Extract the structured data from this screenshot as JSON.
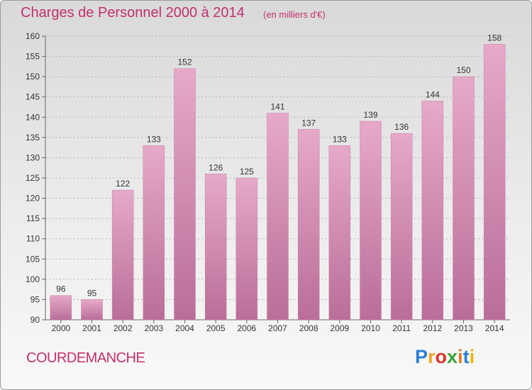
{
  "header": {
    "title": "Charges de Personnel 2000 à 2014",
    "subtitle": "(en milliers d'€)"
  },
  "footer": {
    "commune": "COURDEMANCHE",
    "brand_letters": [
      {
        "ch": "P",
        "color": "#2b7fd4"
      },
      {
        "ch": "r",
        "color": "#f2a11c"
      },
      {
        "ch": "o",
        "color": "#e0342a"
      },
      {
        "ch": "x",
        "color": "#3aa335"
      },
      {
        "ch": "i",
        "color": "#e87722"
      },
      {
        "ch": "t",
        "color": "#2b7fd4"
      },
      {
        "ch": "i",
        "color": "#f2b400"
      }
    ]
  },
  "chart_data": {
    "type": "bar",
    "categories": [
      "2000",
      "2001",
      "2002",
      "2003",
      "2004",
      "2005",
      "2006",
      "2007",
      "2008",
      "2009",
      "2010",
      "2011",
      "2012",
      "2013",
      "2014"
    ],
    "values": [
      96,
      95,
      122,
      133,
      152,
      126,
      125,
      141,
      137,
      133,
      139,
      136,
      144,
      150,
      158
    ],
    "data_labels": [
      "96",
      "95",
      "122",
      "133",
      "152",
      "126",
      "125",
      "141",
      "137",
      "133",
      "139",
      "136",
      "144",
      "150",
      "158"
    ],
    "title": "Charges de Personnel 2000 à 2014",
    "subtitle": "(en milliers d'€)",
    "xlabel": "",
    "ylabel": "",
    "ylim": [
      90,
      160
    ],
    "yticks": [
      90,
      95,
      100,
      105,
      110,
      115,
      120,
      125,
      130,
      135,
      140,
      145,
      150,
      155,
      160
    ],
    "grid": true,
    "bar_color": "#d98bb4"
  }
}
